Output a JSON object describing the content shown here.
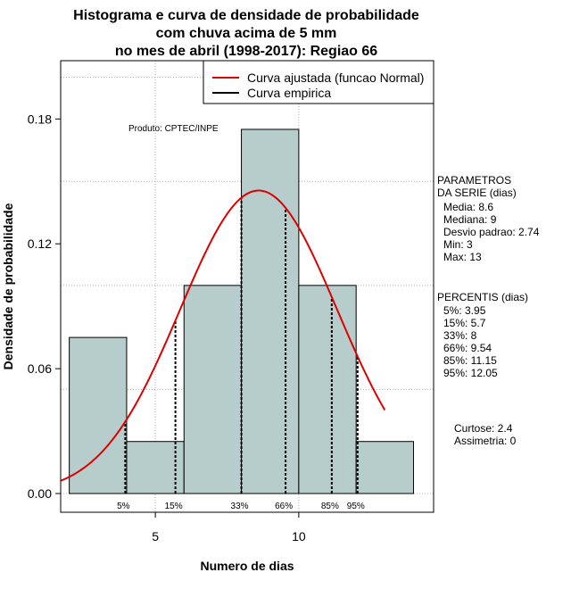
{
  "chart_data": {
    "type": "bar",
    "title_lines": [
      "Histograma e curva de densidade de probabilidade",
      "com chuva acima de 5 mm",
      "no mes de abril (1998-2017): Regiao 66"
    ],
    "xlabel": "Numero de dias",
    "ylabel": "Densidade de probabilidade",
    "xlim": [
      1.7,
      14.7
    ],
    "ylim": [
      -0.009,
      0.208
    ],
    "xticks": [
      5,
      10
    ],
    "yticks": [
      0.0,
      0.06,
      0.12,
      0.18
    ],
    "ytick_labels": [
      "0.00",
      "0.06",
      "0.12",
      "0.18"
    ],
    "grid": true,
    "bars": [
      {
        "x0": 2,
        "x1": 4,
        "value": 0.075
      },
      {
        "x0": 4,
        "x1": 6,
        "value": 0.025
      },
      {
        "x0": 6,
        "x1": 8,
        "value": 0.1
      },
      {
        "x0": 8,
        "x1": 10,
        "value": 0.175
      },
      {
        "x0": 10,
        "x1": 12,
        "value": 0.1
      },
      {
        "x0": 12,
        "x1": 14,
        "value": 0.025
      }
    ],
    "bar_color": "#b6cdcc",
    "normal_fit": {
      "mean": 8.6,
      "sd": 2.74,
      "x_from": 1.7,
      "x_to": 13.0,
      "color": "#dd0000"
    },
    "percentile_lines": [
      {
        "label": "5%",
        "x": 3.95
      },
      {
        "label": "15%",
        "x": 5.7
      },
      {
        "label": "33%",
        "x": 8
      },
      {
        "label": "66%",
        "x": 9.54
      },
      {
        "label": "85%",
        "x": 11.15
      },
      {
        "label": "95%",
        "x": 12.05
      }
    ],
    "legend": {
      "position": "top-right",
      "entries": [
        {
          "label": "Curva ajustada (funcao Normal)",
          "color": "#dd0000"
        },
        {
          "label": "Curva empirica",
          "color": "#000000"
        }
      ]
    },
    "annotation": "Produto: CPTEC/INPE",
    "parametros": {
      "heading": [
        "PARAMETROS",
        "DA SERIE (dias)"
      ],
      "items": [
        "Media: 8.6",
        "Mediana: 9",
        "Desvio padrao: 2.74",
        "Min: 3",
        "Max: 13"
      ]
    },
    "percentis": {
      "heading": "PERCENTIS (dias)",
      "items": [
        "5%: 3.95",
        "15%: 5.7",
        "33%: 8",
        "66%: 9.54",
        "85%: 11.15",
        "95%: 12.05"
      ]
    },
    "stats": [
      "Curtose: 2.4",
      "Assimetria: 0"
    ]
  }
}
